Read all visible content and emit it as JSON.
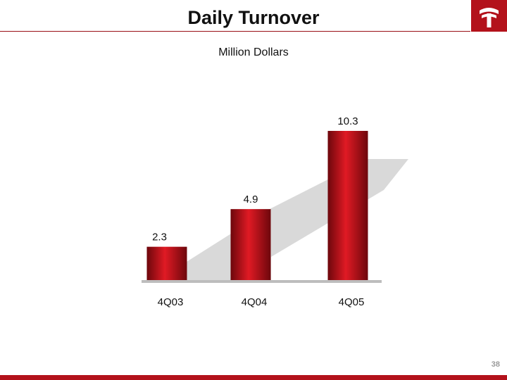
{
  "header": {
    "title": "Daily Turnover",
    "page_number": "38"
  },
  "colors": {
    "accent": "#b3121b",
    "bar": "#c5141d",
    "trend_band": "#d9d9d9"
  },
  "logo": {
    "icon": "bank-logo-icon"
  },
  "chart_data": {
    "type": "bar",
    "title": "Daily Turnover",
    "ylabel": "Million Dollars",
    "xlabel": "",
    "categories": [
      "4Q03",
      "4Q04",
      "4Q05"
    ],
    "values": [
      2.3,
      4.9,
      10.3
    ],
    "value_labels": [
      "2.3",
      "4.9",
      "10.3"
    ],
    "ylim": [
      0,
      10.3
    ],
    "grid": false,
    "legend": "none"
  }
}
